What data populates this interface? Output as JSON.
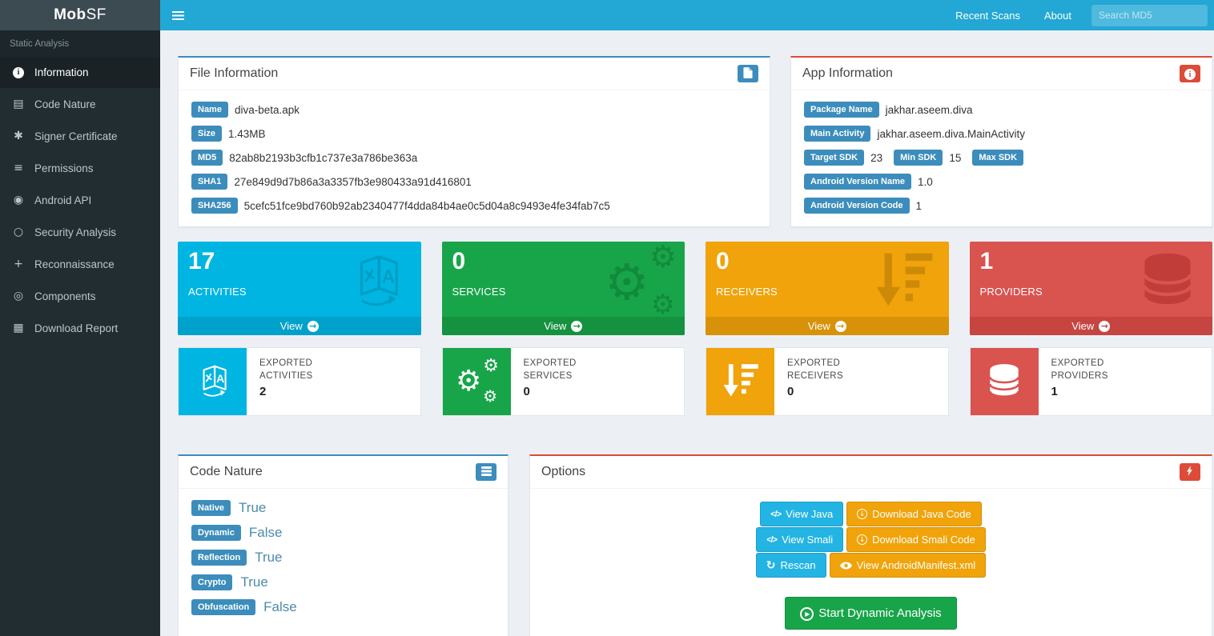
{
  "navbar": {
    "logo_bold": "Mob",
    "logo_rest": "SF",
    "links": [
      "Recent Scans",
      "About"
    ],
    "search_placeholder": "Search MD5"
  },
  "sidebar": {
    "section": "Static Analysis",
    "items": [
      {
        "label": "Information",
        "icon": "info-circle-icon",
        "active": true
      },
      {
        "label": "Code Nature",
        "icon": "tasks-icon",
        "active": false
      },
      {
        "label": "Signer Certificate",
        "icon": "certificate-icon",
        "active": false
      },
      {
        "label": "Permissions",
        "icon": "align-justify-icon",
        "active": false
      },
      {
        "label": "Android API",
        "icon": "dot-circle-icon",
        "active": false
      },
      {
        "label": "Security Analysis",
        "icon": "circle-o-icon",
        "active": false
      },
      {
        "label": "Reconnaissance",
        "icon": "plus-icon",
        "active": false
      },
      {
        "label": "Components",
        "icon": "bullseye-icon",
        "active": false
      },
      {
        "label": "Download Report",
        "icon": "report-icon",
        "active": false
      }
    ]
  },
  "file_info": {
    "title": "File Information",
    "header_icon": "file-icon",
    "fields": [
      {
        "label": "Name",
        "value": "diva-beta.apk"
      },
      {
        "label": "Size",
        "value": "1.43MB"
      },
      {
        "label": "MD5",
        "value": "82ab8b2193b3cfb1c737e3a786be363a"
      },
      {
        "label": "SHA1",
        "value": "27e849d9d7b86a3a3357fb3e980433a91d416801"
      },
      {
        "label": "SHA256",
        "value": "5cefc51fce9bd760b92ab2340477f4dda84b4ae0c5d04a8c9493e4fe34fab7c5"
      }
    ]
  },
  "app_info": {
    "title": "App Information",
    "header_icon": "info-circle-icon",
    "rows": [
      [
        {
          "label": "Package Name",
          "value": "jakhar.aseem.diva"
        }
      ],
      [
        {
          "label": "Main Activity",
          "value": "jakhar.aseem.diva.MainActivity"
        }
      ],
      [
        {
          "label": "Target SDK",
          "value": "23"
        },
        {
          "label": "Min SDK",
          "value": "15"
        },
        {
          "label": "Max SDK",
          "value": ""
        }
      ],
      [
        {
          "label": "Android Version Name",
          "value": "1.0"
        }
      ],
      [
        {
          "label": "Android Version Code",
          "value": "1"
        }
      ]
    ]
  },
  "stats": [
    {
      "value": "17",
      "label": "ACTIVITIES",
      "view_label": "View",
      "icon": "language-icon",
      "color": "#00b5e2",
      "footer_color": "#00a2cb",
      "icon_color": "#009ec5"
    },
    {
      "value": "0",
      "label": "SERVICES",
      "view_label": "View",
      "icon": "gears-icon",
      "color": "#18a549",
      "footer_color": "#15923f",
      "icon_color": "#128a3c"
    },
    {
      "value": "0",
      "label": "RECEIVERS",
      "view_label": "View",
      "icon": "sort-desc-icon",
      "color": "#f0a30a",
      "footer_color": "#d89209",
      "icon_color": "#cd8a08"
    },
    {
      "value": "1",
      "label": "PROVIDERS",
      "view_label": "View",
      "icon": "database-icon",
      "color": "#d9534f",
      "footer_color": "#c64540",
      "icon_color": "#c13d39"
    }
  ],
  "exported": [
    {
      "line1": "EXPORTED",
      "line2": "ACTIVITIES",
      "value": "2",
      "icon": "language-icon",
      "color": "#00b5e2"
    },
    {
      "line1": "EXPORTED",
      "line2": "SERVICES",
      "value": "0",
      "icon": "gears-icon",
      "color": "#18a549"
    },
    {
      "line1": "EXPORTED",
      "line2": "RECEIVERS",
      "value": "0",
      "icon": "sort-desc-icon",
      "color": "#f0a30a"
    },
    {
      "line1": "EXPORTED",
      "line2": "PROVIDERS",
      "value": "1",
      "icon": "database-icon",
      "color": "#d9534f"
    }
  ],
  "code_nature": {
    "title": "Code Nature",
    "header_icon": "list-icon",
    "fields": [
      {
        "label": "Native",
        "value": "True"
      },
      {
        "label": "Dynamic",
        "value": "False"
      },
      {
        "label": "Reflection",
        "value": "True"
      },
      {
        "label": "Crypto",
        "value": "True"
      },
      {
        "label": "Obfuscation",
        "value": "False"
      }
    ]
  },
  "options": {
    "title": "Options",
    "header_icon": "bolt-icon",
    "rows": [
      [
        {
          "label": "View Java",
          "icon": "code-icon",
          "style": "blue"
        },
        {
          "label": "Download Java Code",
          "icon": "download-icon",
          "style": "orange"
        }
      ],
      [
        {
          "label": "View Smali",
          "icon": "code-icon",
          "style": "blue"
        },
        {
          "label": "Download Smali Code",
          "icon": "download-icon",
          "style": "orange"
        }
      ],
      [
        {
          "label": "Rescan",
          "icon": "refresh-icon",
          "style": "blue"
        },
        {
          "label": "View AndroidManifest.xml",
          "icon": "eye-icon",
          "style": "orange"
        }
      ]
    ],
    "start_button": {
      "label": "Start Dynamic Analysis",
      "icon": "play-circle-icon"
    }
  },
  "colors": {
    "navbar": "#23a7d4",
    "logo_bg": "#3c4a52",
    "sidebar_bg": "#222d32",
    "accent_blue": "#3c8dbc",
    "accent_red": "#dd4b39",
    "aqua": "#00b5e2",
    "green": "#18a549",
    "orange": "#f0a30a",
    "red": "#d9534f"
  }
}
